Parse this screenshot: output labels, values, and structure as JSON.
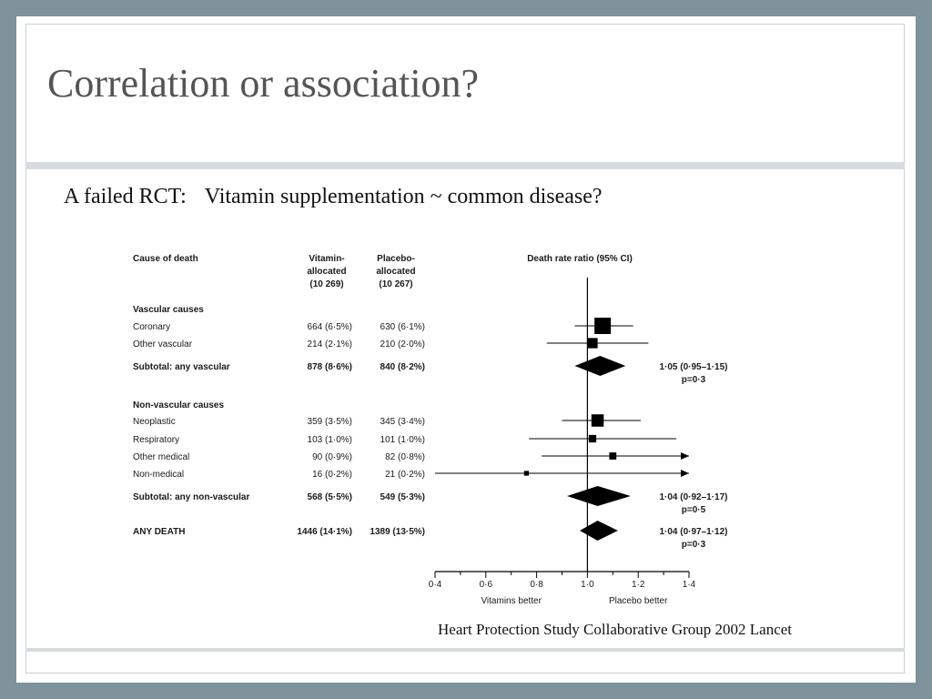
{
  "slide": {
    "title": "Correlation or association?",
    "subtitle_prefix": "A failed RCT:",
    "subtitle_main": "Vitamin supplementation ~ common disease?",
    "citation": "Heart Protection Study Collaborative Group 2002 Lancet"
  },
  "chart_data": {
    "type": "forest",
    "headers": {
      "cause": "Cause of death",
      "vitamin": [
        "Vitamin-",
        "allocated",
        "(10 269)"
      ],
      "placebo": [
        "Placebo-",
        "allocated",
        "(10 267)"
      ],
      "ratio": "Death rate ratio (95% CI)"
    },
    "rows": [
      {
        "kind": "group",
        "label": "Vascular causes"
      },
      {
        "kind": "item",
        "label": "Coronary",
        "vitamin": "664 (6·5%)",
        "placebo": "630 (6·1%)",
        "estimate": 1.06,
        "ci": [
          0.95,
          1.18
        ],
        "weight": 1.0
      },
      {
        "kind": "item",
        "label": "Other vascular",
        "vitamin": "214 (2·1%)",
        "placebo": "210 (2·0%)",
        "estimate": 1.02,
        "ci": [
          0.84,
          1.24
        ],
        "weight": 0.55
      },
      {
        "kind": "subtotal",
        "label": "Subtotal: any vascular",
        "vitamin": "878 (8·6%)",
        "placebo": "840 (8·2%)",
        "estimate": 1.05,
        "ci": [
          0.95,
          1.15
        ],
        "result": "1·05 (0·95–1·15)",
        "p": "p=0·3"
      },
      {
        "kind": "group",
        "label": "Non-vascular causes"
      },
      {
        "kind": "item",
        "label": "Neoplastic",
        "vitamin": "359 (3·5%)",
        "placebo": "345 (3·4%)",
        "estimate": 1.04,
        "ci": [
          0.9,
          1.21
        ],
        "weight": 0.7
      },
      {
        "kind": "item",
        "label": "Respiratory",
        "vitamin": "103 (1·0%)",
        "placebo": "101 (1·0%)",
        "estimate": 1.02,
        "ci": [
          0.77,
          1.35
        ],
        "weight": 0.35
      },
      {
        "kind": "item",
        "label": "Other medical",
        "vitamin": "90 (0·9%)",
        "placebo": "82 (0·8%)",
        "estimate": 1.1,
        "ci": [
          0.82,
          1.48
        ],
        "weight": 0.32
      },
      {
        "kind": "item",
        "label": "Non-medical",
        "vitamin": "16 (0·2%)",
        "placebo": "21 (0·2%)",
        "estimate": 0.76,
        "ci": [
          0.4,
          1.5
        ],
        "weight": 0.15
      },
      {
        "kind": "subtotal",
        "label": "Subtotal: any non-vascular",
        "vitamin": "568 (5·5%)",
        "placebo": "549 (5·3%)",
        "estimate": 1.04,
        "ci": [
          0.92,
          1.17
        ],
        "result": "1·04 (0·92–1·17)",
        "p": "p=0·5"
      },
      {
        "kind": "total",
        "label": "ANY DEATH",
        "vitamin": "1446 (14·1%)",
        "placebo": "1389 (13·5%)",
        "estimate": 1.04,
        "ci": [
          0.97,
          1.12
        ],
        "result": "1·04 (0·97–1·12)",
        "p": "p=0·3"
      }
    ],
    "axis": {
      "min": 0.4,
      "max": 1.4,
      "reference": 1.0,
      "ticks": [
        0.4,
        0.6,
        0.8,
        1.0,
        1.2,
        1.4
      ],
      "tick_labels": [
        "0·4",
        "0·6",
        "0·8",
        "1·0",
        "1·2",
        "1·4"
      ],
      "left_label": "Vitamins better",
      "right_label": "Placebo better"
    }
  }
}
